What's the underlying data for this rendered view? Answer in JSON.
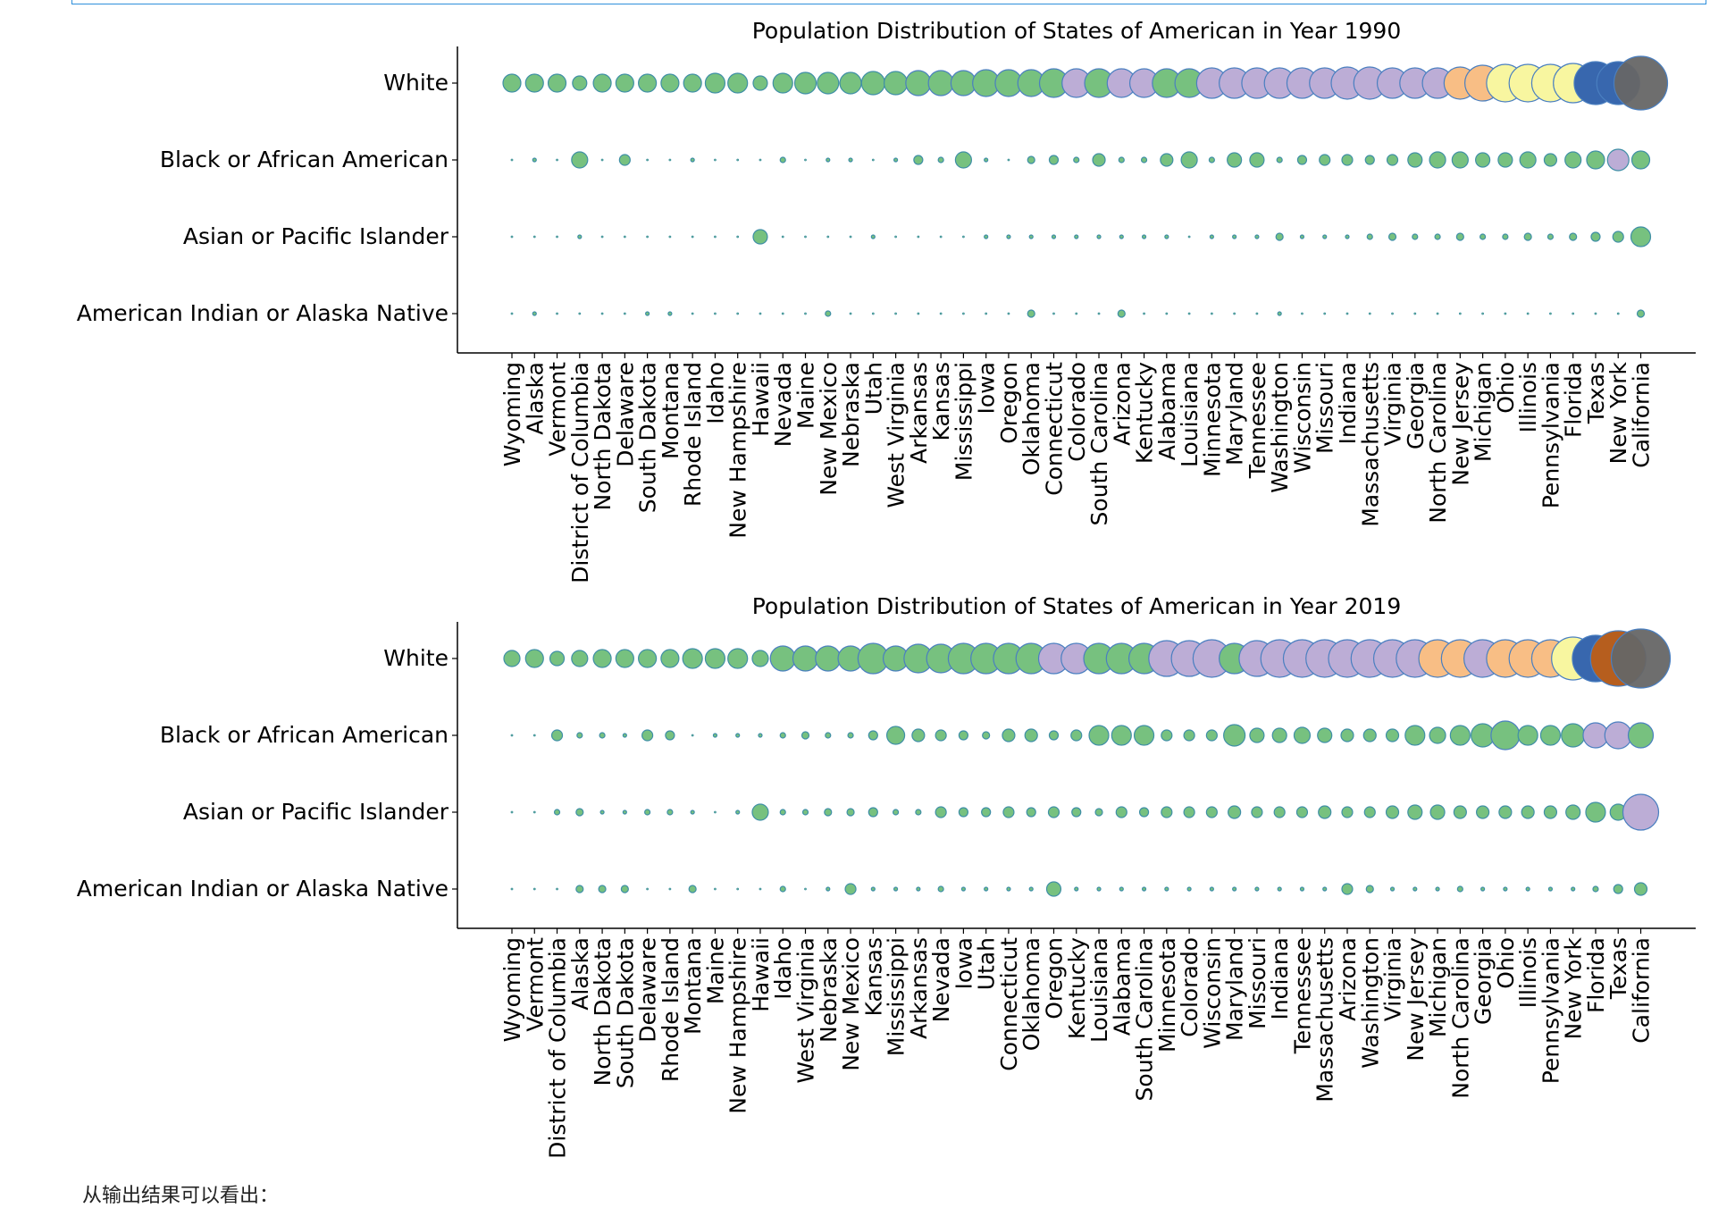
{
  "footer_note": "从输出结果可以看出：",
  "chart_data": [
    {
      "type": "scatter",
      "title": "Population Distribution of States of American in Year 1990",
      "categories": [
        "White",
        "Black or African American",
        "Asian or Pacific Islander",
        "American Indian or Alaska Native"
      ],
      "states": [
        "Wyoming",
        "Alaska",
        "Vermont",
        "District of Columbia",
        "North Dakota",
        "Delaware",
        "South Dakota",
        "Montana",
        "Rhode Island",
        "Idaho",
        "New Hampshire",
        "Hawaii",
        "Nevada",
        "Maine",
        "New Mexico",
        "Nebraska",
        "Utah",
        "West Virginia",
        "Arkansas",
        "Kansas",
        "Mississippi",
        "Iowa",
        "Oregon",
        "Oklahoma",
        "Connecticut",
        "Colorado",
        "South Carolina",
        "Arizona",
        "Kentucky",
        "Alabama",
        "Louisiana",
        "Minnesota",
        "Maryland",
        "Tennessee",
        "Washington",
        "Wisconsin",
        "Missouri",
        "Indiana",
        "Massachusetts",
        "Virginia",
        "Georgia",
        "North Carolina",
        "New Jersey",
        "Michigan",
        "Ohio",
        "Illinois",
        "Pennsylvania",
        "Florida",
        "Texas",
        "New York",
        "California"
      ],
      "sizes": [
        [
          10,
          10,
          10,
          8,
          10,
          10,
          10,
          10,
          10,
          11,
          11,
          8,
          11,
          12,
          12,
          12,
          13,
          13,
          14,
          14,
          14,
          15,
          15,
          15,
          16,
          16,
          16,
          16,
          16,
          16,
          16,
          17,
          17,
          17,
          17,
          17,
          17,
          18,
          18,
          17,
          17,
          17,
          18,
          20,
          21,
          21,
          21,
          22,
          24,
          24,
          30
        ],
        [
          1,
          2,
          1,
          9,
          1,
          6,
          1,
          1,
          2,
          1,
          1,
          1,
          3,
          1,
          2,
          2,
          1,
          2,
          5,
          3,
          9,
          2,
          1,
          4,
          5,
          3,
          7,
          3,
          3,
          7,
          9,
          3,
          8,
          8,
          3,
          5,
          6,
          6,
          5,
          6,
          8,
          9,
          9,
          8,
          8,
          9,
          7,
          9,
          10,
          12,
          10
        ],
        [
          1,
          1,
          1,
          2,
          1,
          1,
          1,
          1,
          1,
          1,
          1,
          8,
          1,
          1,
          1,
          1,
          2,
          1,
          1,
          1,
          1,
          2,
          2,
          2,
          2,
          2,
          2,
          2,
          2,
          2,
          1,
          2,
          2,
          2,
          4,
          2,
          2,
          2,
          3,
          4,
          3,
          3,
          4,
          3,
          3,
          4,
          3,
          4,
          5,
          6,
          11
        ],
        [
          1,
          2,
          1,
          1,
          1,
          1,
          2,
          2,
          1,
          1,
          1,
          1,
          1,
          1,
          3,
          1,
          1,
          1,
          1,
          1,
          1,
          1,
          1,
          4,
          1,
          1,
          1,
          4,
          1,
          1,
          1,
          1,
          1,
          1,
          2,
          1,
          1,
          1,
          1,
          1,
          1,
          1,
          1,
          1,
          1,
          1,
          1,
          1,
          1,
          1,
          4
        ]
      ],
      "colors": [
        [
          "g",
          "g",
          "g",
          "g",
          "g",
          "g",
          "g",
          "g",
          "g",
          "g",
          "g",
          "g",
          "g",
          "g",
          "g",
          "g",
          "g",
          "g",
          "g",
          "g",
          "g",
          "g",
          "g",
          "g",
          "g",
          "p",
          "g",
          "p",
          "p",
          "g",
          "g",
          "p",
          "p",
          "p",
          "p",
          "p",
          "p",
          "p",
          "p",
          "p",
          "p",
          "p",
          "o",
          "o",
          "y",
          "y",
          "y",
          "y",
          "b",
          "b",
          "k"
        ],
        [
          "g",
          "g",
          "g",
          "g",
          "g",
          "g",
          "g",
          "g",
          "g",
          "g",
          "g",
          "g",
          "g",
          "g",
          "g",
          "g",
          "g",
          "g",
          "g",
          "g",
          "g",
          "g",
          "g",
          "g",
          "g",
          "g",
          "g",
          "g",
          "g",
          "g",
          "g",
          "g",
          "g",
          "g",
          "g",
          "g",
          "g",
          "g",
          "g",
          "g",
          "g",
          "g",
          "g",
          "g",
          "g",
          "g",
          "g",
          "g",
          "g",
          "p",
          "g"
        ],
        [
          "g",
          "g",
          "g",
          "g",
          "g",
          "g",
          "g",
          "g",
          "g",
          "g",
          "g",
          "g",
          "g",
          "g",
          "g",
          "g",
          "g",
          "g",
          "g",
          "g",
          "g",
          "g",
          "g",
          "g",
          "g",
          "g",
          "g",
          "g",
          "g",
          "g",
          "g",
          "g",
          "g",
          "g",
          "g",
          "g",
          "g",
          "g",
          "g",
          "g",
          "g",
          "g",
          "g",
          "g",
          "g",
          "g",
          "g",
          "g",
          "g",
          "g",
          "g"
        ],
        [
          "g",
          "g",
          "g",
          "g",
          "g",
          "g",
          "g",
          "g",
          "g",
          "g",
          "g",
          "g",
          "g",
          "g",
          "g",
          "g",
          "g",
          "g",
          "g",
          "g",
          "g",
          "g",
          "g",
          "g",
          "g",
          "g",
          "g",
          "g",
          "g",
          "g",
          "g",
          "g",
          "g",
          "g",
          "g",
          "g",
          "g",
          "g",
          "g",
          "g",
          "g",
          "g",
          "g",
          "g",
          "g",
          "g",
          "g",
          "g",
          "g",
          "g",
          "g"
        ]
      ]
    },
    {
      "type": "scatter",
      "title": "Population Distribution of States of American in Year 2019",
      "categories": [
        "White",
        "Black or African American",
        "Asian or Pacific Islander",
        "American Indian or Alaska Native"
      ],
      "states": [
        "Wyoming",
        "Vermont",
        "District of Columbia",
        "Alaska",
        "North Dakota",
        "South Dakota",
        "Delaware",
        "Rhode Island",
        "Montana",
        "Maine",
        "New Hampshire",
        "Hawaii",
        "Idaho",
        "West Virginia",
        "Nebraska",
        "New Mexico",
        "Kansas",
        "Mississippi",
        "Arkansas",
        "Nevada",
        "Iowa",
        "Utah",
        "Connecticut",
        "Oklahoma",
        "Oregon",
        "Kentucky",
        "Louisiana",
        "Alabama",
        "South Carolina",
        "Minnesota",
        "Colorado",
        "Wisconsin",
        "Maryland",
        "Missouri",
        "Indiana",
        "Tennessee",
        "Massachusetts",
        "Arizona",
        "Washington",
        "Virginia",
        "New Jersey",
        "Michigan",
        "North Carolina",
        "Georgia",
        "Ohio",
        "Illinois",
        "Pennsylvania",
        "New York",
        "Florida",
        "Texas",
        "California"
      ],
      "sizes": [
        [
          9,
          10,
          8,
          9,
          10,
          10,
          10,
          10,
          11,
          11,
          11,
          9,
          14,
          14,
          14,
          14,
          17,
          14,
          16,
          16,
          17,
          17,
          17,
          17,
          17,
          17,
          17,
          17,
          17,
          20,
          20,
          21,
          17,
          20,
          21,
          21,
          21,
          21,
          21,
          21,
          21,
          21,
          21,
          21,
          21,
          21,
          21,
          24,
          26,
          31,
          33
        ],
        [
          1,
          1,
          6,
          3,
          3,
          2,
          6,
          5,
          1,
          2,
          2,
          2,
          3,
          4,
          3,
          3,
          5,
          10,
          7,
          6,
          5,
          4,
          7,
          7,
          5,
          6,
          11,
          11,
          11,
          6,
          6,
          6,
          12,
          8,
          8,
          9,
          8,
          7,
          7,
          7,
          11,
          9,
          11,
          13,
          16,
          11,
          11,
          13,
          14,
          15,
          14
        ],
        [
          1,
          1,
          3,
          4,
          2,
          2,
          3,
          3,
          2,
          1,
          2,
          9,
          3,
          3,
          4,
          4,
          5,
          3,
          3,
          6,
          5,
          5,
          6,
          5,
          6,
          5,
          4,
          6,
          5,
          6,
          6,
          6,
          7,
          6,
          6,
          6,
          7,
          6,
          6,
          7,
          8,
          8,
          7,
          7,
          7,
          7,
          7,
          8,
          11,
          9,
          20
        ],
        [
          1,
          1,
          1,
          4,
          4,
          4,
          1,
          1,
          4,
          1,
          1,
          1,
          3,
          1,
          2,
          6,
          2,
          2,
          2,
          3,
          2,
          2,
          2,
          2,
          8,
          2,
          2,
          2,
          2,
          2,
          2,
          2,
          2,
          2,
          2,
          2,
          2,
          6,
          4,
          2,
          2,
          2,
          3,
          2,
          2,
          2,
          2,
          2,
          3,
          5,
          7
        ]
      ],
      "colors": [
        [
          "g",
          "g",
          "g",
          "g",
          "g",
          "g",
          "g",
          "g",
          "g",
          "g",
          "g",
          "g",
          "g",
          "g",
          "g",
          "g",
          "g",
          "g",
          "g",
          "g",
          "g",
          "g",
          "g",
          "g",
          "p",
          "p",
          "g",
          "g",
          "g",
          "p",
          "p",
          "p",
          "g",
          "p",
          "p",
          "p",
          "p",
          "p",
          "p",
          "p",
          "p",
          "o",
          "o",
          "p",
          "o",
          "o",
          "o",
          "y",
          "b",
          "r",
          "k"
        ],
        [
          "g",
          "g",
          "g",
          "g",
          "g",
          "g",
          "g",
          "g",
          "g",
          "g",
          "g",
          "g",
          "g",
          "g",
          "g",
          "g",
          "g",
          "g",
          "g",
          "g",
          "g",
          "g",
          "g",
          "g",
          "g",
          "g",
          "g",
          "g",
          "g",
          "g",
          "g",
          "g",
          "g",
          "g",
          "g",
          "g",
          "g",
          "g",
          "g",
          "g",
          "g",
          "g",
          "g",
          "g",
          "g",
          "g",
          "g",
          "g",
          "p",
          "p",
          "g"
        ],
        [
          "g",
          "g",
          "g",
          "g",
          "g",
          "g",
          "g",
          "g",
          "g",
          "g",
          "g",
          "g",
          "g",
          "g",
          "g",
          "g",
          "g",
          "g",
          "g",
          "g",
          "g",
          "g",
          "g",
          "g",
          "g",
          "g",
          "g",
          "g",
          "g",
          "g",
          "g",
          "g",
          "g",
          "g",
          "g",
          "g",
          "g",
          "g",
          "g",
          "g",
          "g",
          "g",
          "g",
          "g",
          "g",
          "g",
          "g",
          "g",
          "g",
          "g",
          "p"
        ],
        [
          "g",
          "g",
          "g",
          "g",
          "g",
          "g",
          "g",
          "g",
          "g",
          "g",
          "g",
          "g",
          "g",
          "g",
          "g",
          "g",
          "g",
          "g",
          "g",
          "g",
          "g",
          "g",
          "g",
          "g",
          "g",
          "g",
          "g",
          "g",
          "g",
          "g",
          "g",
          "g",
          "g",
          "g",
          "g",
          "g",
          "g",
          "g",
          "g",
          "g",
          "g",
          "g",
          "g",
          "g",
          "g",
          "g",
          "g",
          "g",
          "g",
          "g",
          "g"
        ]
      ]
    }
  ],
  "palette": {
    "g": "#77c17f",
    "p": "#bcadd6",
    "o": "#f8be85",
    "y": "#f8f6a0",
    "b": "#3867ae",
    "r": "#b65e1e",
    "k": "#666666",
    "edge": "#4a7fc0",
    "small_edge": "#3f8fa6"
  }
}
